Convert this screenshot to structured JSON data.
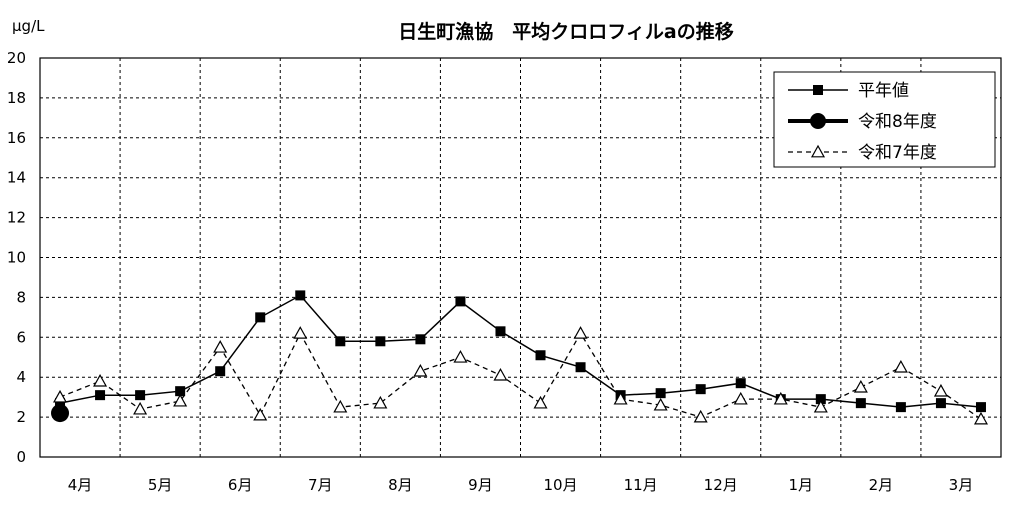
{
  "chart_data": {
    "type": "line",
    "title": "日生町漁協　平均クロロフィルaの推移",
    "ylabel": "μg/L",
    "ylim": [
      0,
      20
    ],
    "yticks": [
      0,
      2,
      4,
      6,
      8,
      10,
      12,
      14,
      16,
      18,
      20
    ],
    "grid": true,
    "legend_position": "top-right",
    "month_labels": [
      "4月",
      "5月",
      "6月",
      "7月",
      "8月",
      "9月",
      "10月",
      "11月",
      "12月",
      "1月",
      "2月",
      "3月"
    ],
    "series": [
      {
        "name": "平年値",
        "style": "solid-square",
        "color": "#000000",
        "values": [
          2.7,
          3.1,
          3.1,
          3.3,
          4.3,
          7.0,
          8.1,
          5.8,
          5.8,
          5.9,
          7.8,
          6.3,
          5.1,
          4.5,
          3.1,
          3.2,
          3.4,
          3.7,
          2.9,
          2.9,
          2.7,
          2.5,
          2.7,
          2.5
        ]
      },
      {
        "name": "令和8年度",
        "style": "thick-circle",
        "color": "#000000",
        "values": [
          2.2
        ]
      },
      {
        "name": "令和7年度",
        "style": "dashed-triangle",
        "color": "#000000",
        "values": [
          3.0,
          3.8,
          2.4,
          2.8,
          5.5,
          2.1,
          6.2,
          2.5,
          2.7,
          4.3,
          5.0,
          4.1,
          2.7,
          6.2,
          2.9,
          2.6,
          2.0,
          2.9,
          2.9,
          2.5,
          3.5,
          4.5,
          3.3,
          1.9
        ]
      }
    ]
  }
}
